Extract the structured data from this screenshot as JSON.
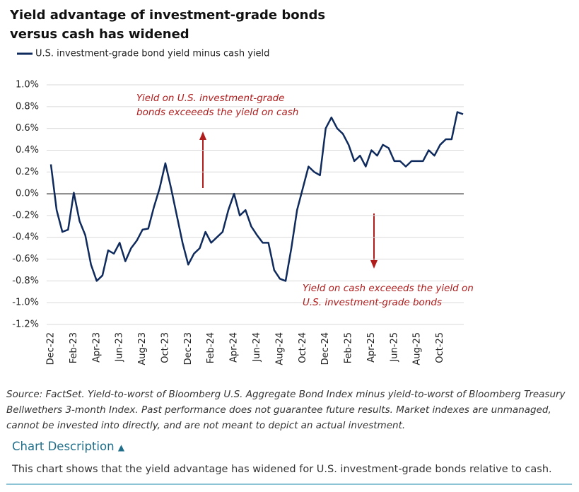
{
  "chart_data": {
    "type": "line",
    "title": "Yield advantage of investment-grade bonds versus cash has widened",
    "categories": [
      "Dec-22",
      null,
      null,
      null,
      "Feb-23",
      null,
      null,
      null,
      "Apr-23",
      null,
      null,
      null,
      "Jun-23",
      null,
      null,
      null,
      "Aug-23",
      null,
      null,
      null,
      "Oct-23",
      null,
      null,
      null,
      "Dec-23",
      null,
      null,
      null,
      "Feb-24",
      null,
      null,
      null,
      "Apr-24",
      null,
      null,
      null,
      "Jun-24",
      null,
      null,
      null,
      "Aug-24",
      null,
      null,
      null,
      "Oct-24",
      null,
      null,
      null,
      "Dec-24",
      null,
      null,
      null,
      "Feb-25",
      null,
      null,
      null,
      "Apr-25",
      null,
      null,
      null,
      "Jun-25",
      null,
      null,
      null,
      "Aug-25",
      null,
      null,
      null,
      "Oct-25",
      null,
      null,
      null,
      null
    ],
    "series": [
      {
        "name": "U.S. investment-grade bond yield minus cash yield",
        "color": "#0f2a5c",
        "values": [
          0.27,
          -0.15,
          -0.35,
          -0.33,
          0.01,
          -0.25,
          -0.38,
          -0.65,
          -0.8,
          -0.75,
          -0.52,
          -0.55,
          -0.45,
          -0.62,
          -0.5,
          -0.43,
          -0.33,
          -0.32,
          -0.12,
          0.05,
          0.28,
          0.05,
          -0.2,
          -0.45,
          -0.65,
          -0.55,
          -0.5,
          -0.35,
          -0.45,
          -0.4,
          -0.35,
          -0.15,
          0.0,
          -0.2,
          -0.15,
          -0.3,
          -0.38,
          -0.45,
          -0.45,
          -0.7,
          -0.78,
          -0.8,
          -0.5,
          -0.15,
          0.05,
          0.25,
          0.2,
          0.17,
          0.6,
          0.7,
          0.6,
          0.55,
          0.45,
          0.3,
          0.35,
          0.25,
          0.4,
          0.35,
          0.45,
          0.42,
          0.3,
          0.3,
          0.25,
          0.3,
          0.3,
          0.3,
          0.4,
          0.35,
          0.45,
          0.5,
          0.5,
          0.75,
          0.73
        ]
      }
    ],
    "ylim": [
      -1.2,
      1.0
    ],
    "yticks": [
      {
        "value": -1.2,
        "label": "-1.2%"
      },
      {
        "value": -1.0,
        "label": "-1.0%"
      },
      {
        "value": -0.8,
        "label": "-0.8%"
      },
      {
        "value": -0.6,
        "label": "-0.6%"
      },
      {
        "value": -0.4,
        "label": "-0.4%"
      },
      {
        "value": -0.2,
        "label": "-0.2%"
      },
      {
        "value": 0,
        "label": "0.0%"
      },
      {
        "value": 0.2,
        "label": "0.2%"
      },
      {
        "value": 0.4,
        "label": "0.4%"
      },
      {
        "value": 0.6,
        "label": "0.6%"
      },
      {
        "value": 0.8,
        "label": "0.8%"
      },
      {
        "value": 1.0,
        "label": "1.0%"
      }
    ],
    "grid": true,
    "legend": "top-left",
    "annotations": [
      [
        "Yield on U.S. investment-grade",
        "bonds exceeeds the yield on cash"
      ],
      [
        "Yield on cash  exceeeds the yield on",
        "U.S. investment-grade bonds"
      ]
    ]
  },
  "source": "Source: FactSet. Yield-to-worst of Bloomberg U.S. Aggregate Bond Index minus yield-to-worst of Bloomberg Treasury Bellwethers 3-month Index. Past performance does not guarantee future results. Market indexes are unmanaged, cannot be invested into directly, and are not meant to depict an actual investment.",
  "description_heading": "Chart Description",
  "description": "This chart shows that the yield advantage has widened for U.S. investment-grade bonds relative to cash."
}
